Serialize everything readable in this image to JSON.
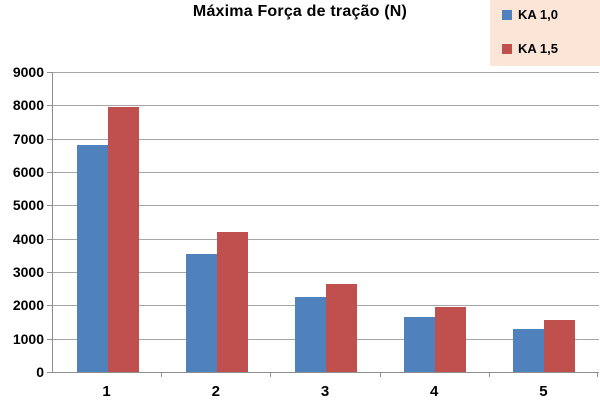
{
  "chart_data": {
    "type": "bar",
    "title": "Máxima Força de tração (N)",
    "categories": [
      "1",
      "2",
      "3",
      "4",
      "5"
    ],
    "series": [
      {
        "name": "KA 1,0",
        "color": "#4f81bd",
        "values": [
          6800,
          3550,
          2250,
          1650,
          1300
        ]
      },
      {
        "name": "KA 1,5",
        "color": "#c0504d",
        "values": [
          7950,
          4200,
          2650,
          1950,
          1550
        ]
      }
    ],
    "xlabel": "",
    "ylabel": "",
    "ylim": [
      0,
      9000
    ],
    "ytick_step": 1000,
    "yticks": [
      "0",
      "1000",
      "2000",
      "3000",
      "4000",
      "5000",
      "6000",
      "7000",
      "8000",
      "9000"
    ],
    "grid": true,
    "legend_position": "top-right",
    "colors": {
      "page_background": "#ffffff",
      "plot_background": "#ffffff",
      "legend_background": "#fbe5d6",
      "gridline": "#a6a6a6",
      "axis": "#8f8f8f",
      "text": "#000000"
    }
  }
}
